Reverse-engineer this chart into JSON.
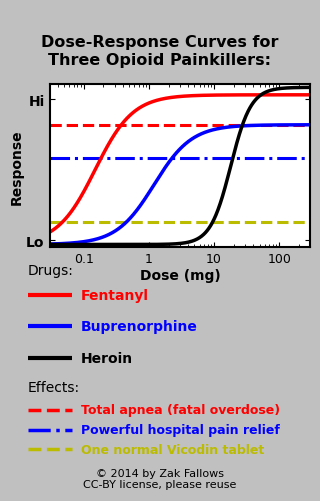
{
  "title": "Dose-Response Curves for\nThree Opioid Painkillers:",
  "xlabel": "Dose (mg)",
  "ylabel": "Response",
  "background_color": "#c0c0c0",
  "plot_bg": "#ffffff",
  "fentanyl_color": "#ff0000",
  "buprenorphine_color": "#0000ff",
  "heroin_color": "#000000",
  "red_line_color": "#ff0000",
  "blue_line_color": "#0000ff",
  "yellow_line_color": "#bbbb00",
  "fentanyl_ec50": 0.15,
  "fentanyl_max": 1.0,
  "fentanyl_hill": 1.5,
  "buprenorphine_ec50": 1.2,
  "buprenorphine_max": 0.8,
  "buprenorphine_hill": 1.5,
  "heroin_ec50": 18.0,
  "heroin_max": 1.05,
  "heroin_hill": 2.8,
  "red_hline": 0.8,
  "blue_hline": 0.58,
  "yellow_hline": 0.15,
  "xmin": 0.03,
  "xmax": 300,
  "ymin": -0.02,
  "ymax": 1.07,
  "legend_drugs_title": "Drugs:",
  "legend_effects_title": "Effects:",
  "fentanyl_label": "Fentanyl",
  "buprenorphine_label": "Buprenorphine",
  "heroin_label": "Heroin",
  "effect1_label": "Total apnea (fatal overdose)",
  "effect2_label": "Powerful hospital pain relief",
  "effect3_label": "One normal Vicodin tablet",
  "copyright_text": "© 2014 by Zak Fallows\nCC-BY license, please reuse"
}
